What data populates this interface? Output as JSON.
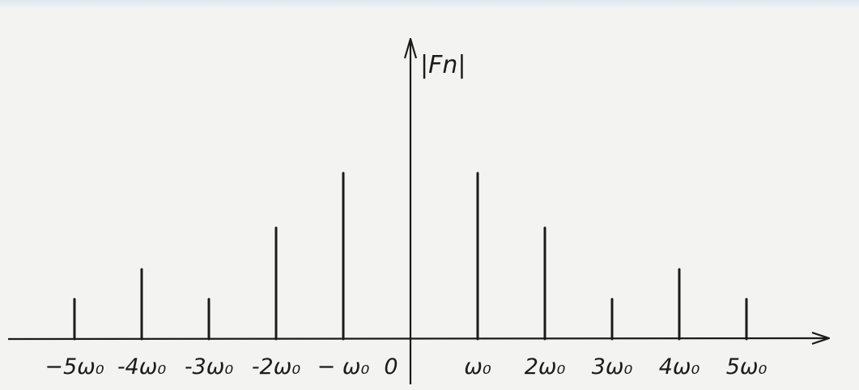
{
  "chart_data": {
    "type": "bar",
    "subtype": "line-spectrum",
    "title": "",
    "ylabel": "|Fn|",
    "xlabel": "",
    "categories": [
      "-5ω₀",
      "-4ω₀",
      "-3ω₀",
      "-2ω₀",
      "-ω₀",
      "0",
      "ω₀",
      "2ω₀",
      "3ω₀",
      "4ω₀",
      "5ω₀"
    ],
    "tick_labels": [
      "−5ω₀",
      "-4ω₀",
      "-3ω₀",
      "-2ω₀",
      "− ω₀",
      "0",
      "ω₀",
      "2ω₀",
      "3ω₀",
      "4ω₀",
      "5ω₀"
    ],
    "x": [
      -5,
      -4,
      -3,
      -2,
      -1,
      0,
      1,
      2,
      3,
      4,
      5
    ],
    "values": [
      0.24,
      0.42,
      0.24,
      0.67,
      1.0,
      0,
      1.0,
      0.67,
      0.24,
      0.42,
      0.24
    ],
    "ylim": [
      0,
      1.8
    ],
    "xlim": [
      -6.1,
      6.2
    ],
    "grid": false,
    "legend": "none",
    "color": "#1b1b1b"
  }
}
